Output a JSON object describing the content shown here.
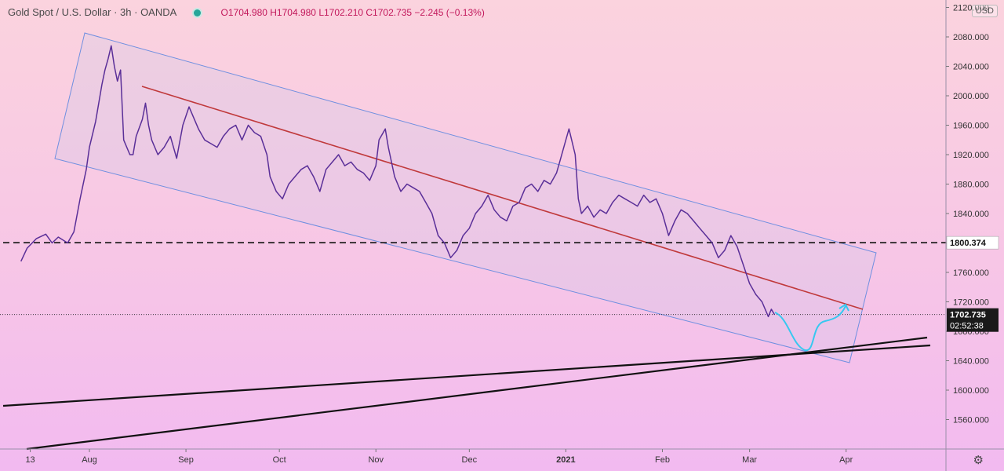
{
  "header": {
    "title": "Gold Spot / U.S. Dollar · 3h · OANDA",
    "ohlc": "O1704.980  H1704.980  L1702.210  C1702.735  −2.245 (−0.13%)"
  },
  "axis": {
    "currency": "USD",
    "gear_icon": "gear-icon"
  },
  "chart_data": {
    "type": "line",
    "title": "Gold Spot / U.S. Dollar",
    "ylim": [
      1520,
      2120
    ],
    "y_ticks": [
      1560,
      1600,
      1640,
      1680,
      1720,
      1760,
      1800,
      1840,
      1880,
      1920,
      1960,
      2000,
      2040,
      2080,
      2120
    ],
    "x_ticks": [
      "13",
      "Aug",
      "Sep",
      "Oct",
      "Nov",
      "Dec",
      "2021",
      "Feb",
      "Mar",
      "Apr"
    ],
    "x_ticks_days": [
      -19,
      0,
      31,
      61,
      92,
      122,
      153,
      184,
      212,
      243
    ],
    "series": [
      {
        "values": [
          [
            -22,
            1775
          ],
          [
            -20,
            1793
          ],
          [
            -17,
            1806
          ],
          [
            -14,
            1812
          ],
          [
            -12,
            1800
          ],
          [
            -10,
            1808
          ],
          [
            -7,
            1800
          ],
          [
            -5,
            1815
          ],
          [
            -3,
            1860
          ],
          [
            -1,
            1900
          ],
          [
            0,
            1930
          ],
          [
            2,
            1965
          ],
          [
            4,
            2015
          ],
          [
            5,
            2035
          ],
          [
            6,
            2050
          ],
          [
            7,
            2068
          ],
          [
            8,
            2040
          ],
          [
            9,
            2020
          ],
          [
            10,
            2035
          ],
          [
            11,
            1940
          ],
          [
            13,
            1920
          ],
          [
            14,
            1920
          ],
          [
            15,
            1945
          ],
          [
            17,
            1968
          ],
          [
            18,
            1990
          ],
          [
            19,
            1960
          ],
          [
            20,
            1940
          ],
          [
            22,
            1920
          ],
          [
            24,
            1930
          ],
          [
            26,
            1945
          ],
          [
            28,
            1915
          ],
          [
            30,
            1960
          ],
          [
            32,
            1985
          ],
          [
            33,
            1975
          ],
          [
            35,
            1955
          ],
          [
            37,
            1940
          ],
          [
            39,
            1935
          ],
          [
            41,
            1930
          ],
          [
            43,
            1945
          ],
          [
            45,
            1955
          ],
          [
            47,
            1960
          ],
          [
            49,
            1940
          ],
          [
            51,
            1960
          ],
          [
            53,
            1950
          ],
          [
            55,
            1945
          ],
          [
            57,
            1920
          ],
          [
            58,
            1890
          ],
          [
            60,
            1870
          ],
          [
            62,
            1860
          ],
          [
            64,
            1880
          ],
          [
            66,
            1890
          ],
          [
            68,
            1900
          ],
          [
            70,
            1905
          ],
          [
            72,
            1890
          ],
          [
            74,
            1870
          ],
          [
            76,
            1900
          ],
          [
            78,
            1910
          ],
          [
            80,
            1920
          ],
          [
            82,
            1905
          ],
          [
            84,
            1910
          ],
          [
            86,
            1900
          ],
          [
            88,
            1895
          ],
          [
            90,
            1885
          ],
          [
            92,
            1905
          ],
          [
            93,
            1940
          ],
          [
            95,
            1955
          ],
          [
            96,
            1930
          ],
          [
            98,
            1890
          ],
          [
            100,
            1870
          ],
          [
            102,
            1880
          ],
          [
            104,
            1875
          ],
          [
            106,
            1870
          ],
          [
            108,
            1855
          ],
          [
            110,
            1840
          ],
          [
            112,
            1810
          ],
          [
            114,
            1800
          ],
          [
            116,
            1780
          ],
          [
            118,
            1790
          ],
          [
            120,
            1810
          ],
          [
            122,
            1820
          ],
          [
            124,
            1840
          ],
          [
            126,
            1850
          ],
          [
            128,
            1865
          ],
          [
            130,
            1845
          ],
          [
            132,
            1835
          ],
          [
            134,
            1830
          ],
          [
            136,
            1850
          ],
          [
            138,
            1855
          ],
          [
            140,
            1875
          ],
          [
            142,
            1880
          ],
          [
            144,
            1870
          ],
          [
            146,
            1885
          ],
          [
            148,
            1880
          ],
          [
            150,
            1895
          ],
          [
            151,
            1910
          ],
          [
            153,
            1940
          ],
          [
            154,
            1955
          ],
          [
            156,
            1920
          ],
          [
            157,
            1860
          ],
          [
            158,
            1840
          ],
          [
            160,
            1850
          ],
          [
            162,
            1835
          ],
          [
            164,
            1845
          ],
          [
            166,
            1840
          ],
          [
            168,
            1855
          ],
          [
            170,
            1865
          ],
          [
            172,
            1860
          ],
          [
            174,
            1855
          ],
          [
            176,
            1850
          ],
          [
            178,
            1865
          ],
          [
            180,
            1855
          ],
          [
            182,
            1860
          ],
          [
            184,
            1840
          ],
          [
            186,
            1810
          ],
          [
            188,
            1830
          ],
          [
            190,
            1845
          ],
          [
            192,
            1840
          ],
          [
            194,
            1830
          ],
          [
            196,
            1820
          ],
          [
            198,
            1810
          ],
          [
            200,
            1800
          ],
          [
            202,
            1780
          ],
          [
            204,
            1790
          ],
          [
            206,
            1810
          ],
          [
            208,
            1795
          ],
          [
            210,
            1770
          ],
          [
            212,
            1745
          ],
          [
            214,
            1730
          ],
          [
            216,
            1720
          ],
          [
            218,
            1700
          ],
          [
            219,
            1710
          ],
          [
            220,
            1702.7
          ]
        ]
      }
    ],
    "annotations": {
      "last_price": 1702.735,
      "last_price_label": "1702.735",
      "countdown": "02:52:38",
      "level_line": 1800.374,
      "level_label": "1800.374"
    }
  }
}
